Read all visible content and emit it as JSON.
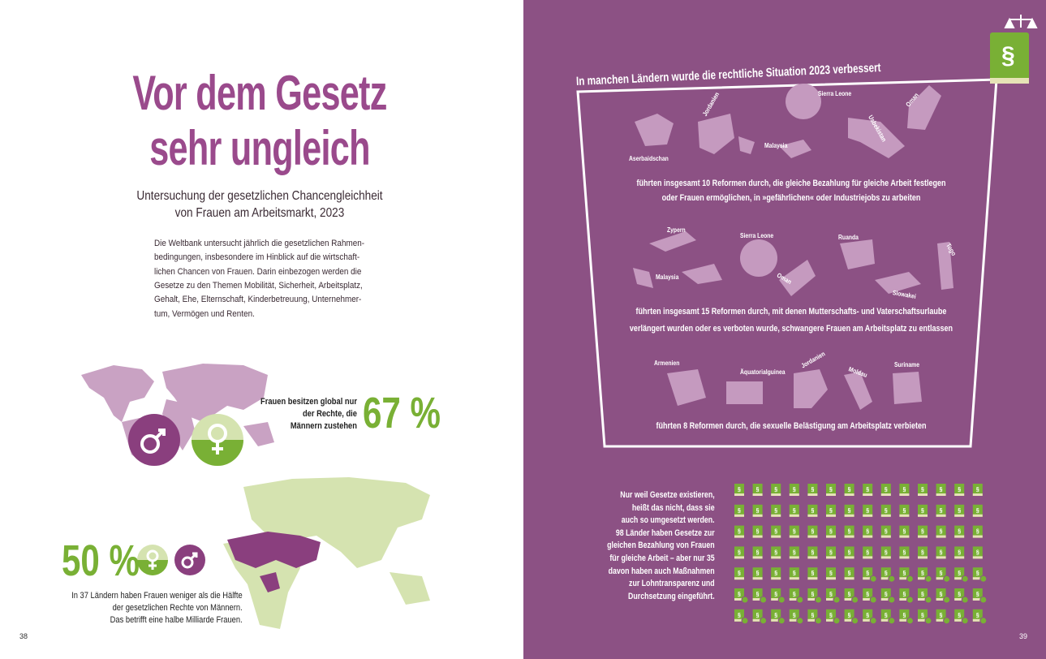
{
  "left_page": {
    "title": [
      "Vor dem Gesetz",
      "sehr ungleich"
    ],
    "subtitle": [
      "Untersuchung der gesetzlichen Chancengleichheit",
      "von Frauen am Arbeitsmarkt, 2023"
    ],
    "body": [
      "Die Weltbank untersucht jährlich die gesetzlichen Rahmen-",
      "bedingungen, insbesondere im Hinblick auf die wirtschaft-",
      "lichen Chancen von Frauen. Darin einbezogen werden die",
      "Gesetze zu den Themen Mobilität, Sicherheit, Arbeitsplatz,",
      "Gehalt, Ehe, Elternschaft, Kinderbetreuung, Unternehmer-",
      "tum, Vermögen und Renten."
    ],
    "global_text": [
      "Frauen besitzen global nur",
      "der Rechte, die",
      "Männern zustehen"
    ],
    "global_value": "67 %",
    "half_value": "50 %",
    "half_text": [
      "In 37 Ländern haben Frauen weniger als die Hälfte",
      "der gesetzlichen Rechte von Männern.",
      "Das betrifft eine halbe Milliarde Frauen."
    ],
    "page_number": "38"
  },
  "right_page": {
    "heading": "In manchen Ländern wurde die rechtliche Situation 2023 verbessert",
    "groups": [
      {
        "countries": [
          "Aserbaidschan",
          "Jordanien",
          "Malaysia",
          "Sierra Leone",
          "Usbekistan",
          "Oman"
        ],
        "caption": [
          "führten insgesamt 10 Reformen durch, die gleiche Bezahlung für gleiche Arbeit festlegen",
          "oder Frauen ermöglichen, in »gefährlichen« oder Industriejobs zu arbeiten"
        ]
      },
      {
        "countries": [
          "Zypern",
          "Malaysia",
          "Sierra Leone",
          "Oman",
          "Ruanda",
          "Slowakei",
          "Togo"
        ],
        "caption": [
          "führten insgesamt 15 Reformen durch, mit denen Mutterschafts- und Vaterschaftsurlaube",
          "verlängert wurden oder es verboten wurde, schwangere Frauen am Arbeitsplatz zu entlassen"
        ]
      },
      {
        "countries": [
          "Armenien",
          "Äquatorialguinea",
          "Jordanien",
          "Moldau",
          "Suriname"
        ],
        "caption": [
          "führten 8 Reformen durch, die sexuelle Belästigung am Arbeitsplatz verbieten"
        ]
      }
    ],
    "note": [
      "Nur weil Gesetze existieren,",
      "heißt das nicht, dass sie",
      "auch so umgesetzt werden.",
      "98 Länder haben Gesetze zur",
      "gleichen Bezahlung von Frauen",
      "für gleiche Arbeit – aber"
    ],
    "note_bold": [
      "nur 35",
      "davon haben auch Maßnahmen",
      "zur Lohntransparenz und",
      "Durchsetzung eingeführt."
    ],
    "icon_symbol": "§",
    "icon_grid": {
      "total": 98,
      "with_measures": 35
    },
    "page_number": "39"
  }
}
